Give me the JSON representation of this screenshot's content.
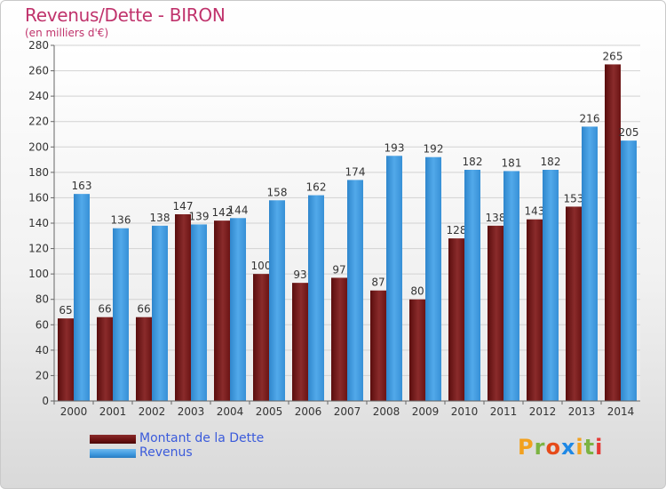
{
  "header": {
    "title": "Revenus/Dette - BIRON",
    "subtitle": "(en milliers d'€)"
  },
  "legend": {
    "items": [
      {
        "label": "Montant de la Dette",
        "color": "#6b1111"
      },
      {
        "label": "Revenus",
        "color": "#3d97dd"
      }
    ]
  },
  "logo": {
    "letters": [
      "P",
      "r",
      "o",
      "x",
      "i",
      "t",
      "i"
    ]
  },
  "colors": {
    "dette": "#7d2424",
    "revenus": "#3d97dd",
    "title": "#c0336c",
    "logo": [
      "#f2a11f",
      "#7cb342",
      "#e64a19",
      "#1e88e5",
      "#f2a11f",
      "#7cb342",
      "#e53935"
    ]
  },
  "chart_data": {
    "type": "bar",
    "title": "Revenus/Dette - BIRON",
    "subtitle": "(en milliers d'€)",
    "categories": [
      "2000",
      "2001",
      "2002",
      "2003",
      "2004",
      "2005",
      "2006",
      "2007",
      "2008",
      "2009",
      "2010",
      "2011",
      "2012",
      "2013",
      "2014"
    ],
    "series": [
      {
        "name": "Montant de la Dette",
        "values": [
          65,
          66,
          66,
          147,
          142,
          100,
          93,
          97,
          87,
          80,
          128,
          138,
          143,
          153,
          265
        ]
      },
      {
        "name": "Revenus",
        "values": [
          163,
          136,
          138,
          139,
          144,
          158,
          162,
          174,
          193,
          192,
          182,
          181,
          182,
          216,
          205
        ]
      }
    ],
    "ylim": [
      0,
      280
    ],
    "yticks": [
      0,
      20,
      40,
      60,
      80,
      100,
      120,
      140,
      160,
      180,
      200,
      220,
      240,
      260,
      280
    ],
    "grid": true,
    "legend_position": "bottom-left"
  }
}
